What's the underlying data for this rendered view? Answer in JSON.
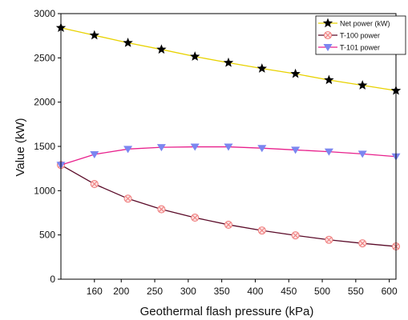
{
  "chart_data": {
    "type": "line",
    "title": "",
    "xlabel": "Geothermal flash pressure (kPa)",
    "ylabel": "Value (kW)",
    "xlim": [
      110,
      610
    ],
    "ylim": [
      0,
      3000
    ],
    "xticks": [
      200,
      250,
      300,
      350,
      400,
      450,
      500,
      550,
      600,
      160
    ],
    "xtick_labels": [
      "200",
      "250",
      "300",
      "350",
      "400",
      "450",
      "500",
      "550",
      "600",
      "160"
    ],
    "yticks": [
      0,
      500,
      1000,
      1500,
      2000,
      2500,
      3000
    ],
    "ytick_labels": [
      "0",
      "500",
      "1000",
      "1500",
      "2000",
      "2500",
      "3000"
    ],
    "grid": false,
    "legend_position": "top-right",
    "x": [
      110,
      160,
      210,
      260,
      310,
      360,
      410,
      460,
      510,
      560,
      610
    ],
    "series": [
      {
        "name": "Net power (kW)",
        "values": [
          2840,
          2755,
          2670,
          2595,
          2515,
          2445,
          2380,
          2320,
          2250,
          2190,
          2130
        ],
        "line_color": "#e8d200",
        "marker": "star",
        "marker_color": "#000000"
      },
      {
        "name": "T-100 power",
        "values": [
          1290,
          1075,
          910,
          790,
          695,
          615,
          550,
          495,
          445,
          405,
          370
        ],
        "line_color": "#5a0a28",
        "marker": "circle-x",
        "marker_color": "#f08080"
      },
      {
        "name": "T-101 power",
        "values": [
          1290,
          1410,
          1470,
          1490,
          1495,
          1495,
          1480,
          1460,
          1440,
          1415,
          1385
        ],
        "line_color": "#e8208c",
        "marker": "triangle-down",
        "marker_color": "#7b86f0"
      }
    ]
  }
}
